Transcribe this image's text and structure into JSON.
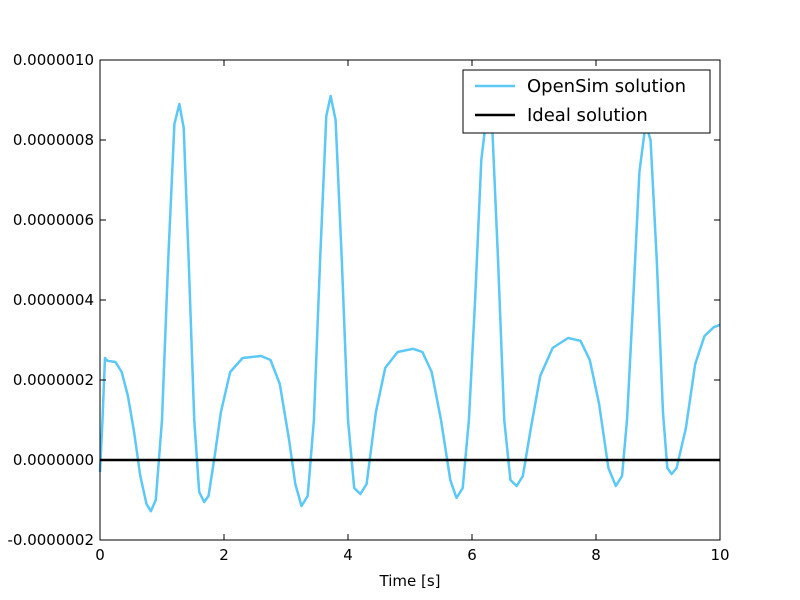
{
  "chart_data": {
    "type": "line",
    "title": "",
    "xlabel": "Time [s]",
    "ylabel": "",
    "xlim": [
      0,
      10
    ],
    "ylim": [
      -2e-07,
      1e-06
    ],
    "grid": false,
    "legend_position": "top-right",
    "x_ticks": [
      {
        "value": 0,
        "label": "0"
      },
      {
        "value": 2,
        "label": "2"
      },
      {
        "value": 4,
        "label": "4"
      },
      {
        "value": 6,
        "label": "6"
      },
      {
        "value": 8,
        "label": "8"
      },
      {
        "value": 10,
        "label": "10"
      }
    ],
    "y_ticks": [
      {
        "value": -2e-07,
        "label": "-0.0000002"
      },
      {
        "value": 0,
        "label": "0.0000000"
      },
      {
        "value": 2e-07,
        "label": "0.0000002"
      },
      {
        "value": 4e-07,
        "label": "0.0000004"
      },
      {
        "value": 6e-07,
        "label": "0.0000006"
      },
      {
        "value": 8e-07,
        "label": "0.0000008"
      },
      {
        "value": 1e-06,
        "label": "0.0000010"
      }
    ],
    "series": [
      {
        "name": "OpenSim solution",
        "color": "#5bc8f5",
        "points": [
          [
            0,
            -3e-08
          ],
          [
            0.04,
            1e-07
          ],
          [
            0.08,
            2.55e-07
          ],
          [
            0.12,
            2.48e-07
          ],
          [
            0.25,
            2.45e-07
          ],
          [
            0.35,
            2.2e-07
          ],
          [
            0.45,
            1.6e-07
          ],
          [
            0.55,
            7e-08
          ],
          [
            0.65,
            -4e-08
          ],
          [
            0.75,
            -1.1e-07
          ],
          [
            0.82,
            -1.28e-07
          ],
          [
            0.9,
            -1e-07
          ],
          [
            1.0,
            1e-07
          ],
          [
            1.1,
            5e-07
          ],
          [
            1.2,
            8.4e-07
          ],
          [
            1.28,
            8.9e-07
          ],
          [
            1.35,
            8.3e-07
          ],
          [
            1.43,
            5e-07
          ],
          [
            1.52,
            1e-07
          ],
          [
            1.6,
            -8e-08
          ],
          [
            1.68,
            -1.05e-07
          ],
          [
            1.75,
            -9e-08
          ],
          [
            1.85,
            1e-08
          ],
          [
            1.95,
            1.2e-07
          ],
          [
            2.1,
            2.2e-07
          ],
          [
            2.3,
            2.55e-07
          ],
          [
            2.6,
            2.6e-07
          ],
          [
            2.75,
            2.5e-07
          ],
          [
            2.9,
            1.9e-07
          ],
          [
            3.05,
            5e-08
          ],
          [
            3.15,
            -6e-08
          ],
          [
            3.25,
            -1.15e-07
          ],
          [
            3.35,
            -9e-08
          ],
          [
            3.45,
            1e-07
          ],
          [
            3.55,
            5e-07
          ],
          [
            3.65,
            8.6e-07
          ],
          [
            3.72,
            9.1e-07
          ],
          [
            3.8,
            8.5e-07
          ],
          [
            3.9,
            5e-07
          ],
          [
            4.0,
            1e-07
          ],
          [
            4.1,
            -7e-08
          ],
          [
            4.2,
            -8.5e-08
          ],
          [
            4.3,
            -6e-08
          ],
          [
            4.45,
            1.2e-07
          ],
          [
            4.6,
            2.3e-07
          ],
          [
            4.8,
            2.7e-07
          ],
          [
            5.05,
            2.78e-07
          ],
          [
            5.2,
            2.7e-07
          ],
          [
            5.35,
            2.2e-07
          ],
          [
            5.5,
            1e-07
          ],
          [
            5.65,
            -5e-08
          ],
          [
            5.75,
            -9.5e-08
          ],
          [
            5.85,
            -7e-08
          ],
          [
            5.95,
            1e-07
          ],
          [
            6.05,
            4e-07
          ],
          [
            6.15,
            7.5e-07
          ],
          [
            6.25,
            8.8e-07
          ],
          [
            6.33,
            8.2e-07
          ],
          [
            6.42,
            5e-07
          ],
          [
            6.52,
            1e-07
          ],
          [
            6.62,
            -5e-08
          ],
          [
            6.72,
            -6.5e-08
          ],
          [
            6.82,
            -4e-08
          ],
          [
            6.95,
            8e-08
          ],
          [
            7.1,
            2.1e-07
          ],
          [
            7.3,
            2.8e-07
          ],
          [
            7.55,
            3.05e-07
          ],
          [
            7.75,
            2.98e-07
          ],
          [
            7.9,
            2.5e-07
          ],
          [
            8.05,
            1.4e-07
          ],
          [
            8.2,
            -2e-08
          ],
          [
            8.32,
            -6.5e-08
          ],
          [
            8.42,
            -4e-08
          ],
          [
            8.5,
            1e-07
          ],
          [
            8.6,
            4e-07
          ],
          [
            8.7,
            7.2e-07
          ],
          [
            8.8,
            8.4e-07
          ],
          [
            8.88,
            8e-07
          ],
          [
            8.98,
            5e-07
          ],
          [
            9.08,
            1.2e-07
          ],
          [
            9.15,
            -2e-08
          ],
          [
            9.22,
            -3.5e-08
          ],
          [
            9.3,
            -2e-08
          ],
          [
            9.45,
            8e-08
          ],
          [
            9.6,
            2.4e-07
          ],
          [
            9.75,
            3.1e-07
          ],
          [
            9.9,
            3.32e-07
          ],
          [
            10.0,
            3.38e-07
          ]
        ]
      },
      {
        "name": "Ideal solution",
        "color": "#000000",
        "points": [
          [
            0,
            0
          ],
          [
            10,
            0
          ]
        ]
      }
    ]
  }
}
